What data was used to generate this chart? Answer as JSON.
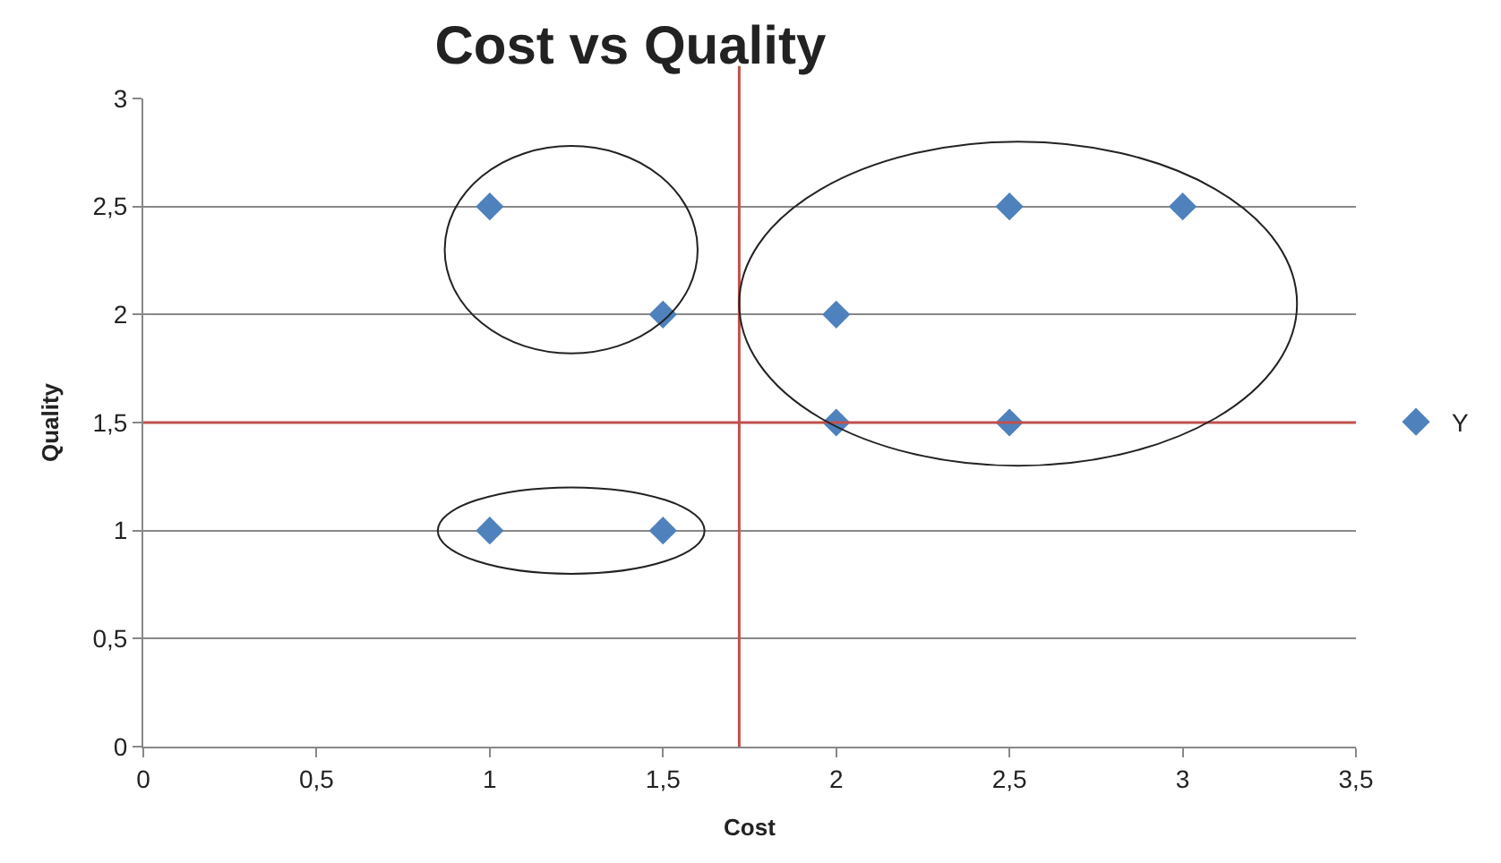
{
  "chart_data": {
    "type": "scatter",
    "title": "Cost vs Quality",
    "xlabel": "Cost",
    "ylabel": "Quality",
    "x": [
      1,
      1.5,
      1,
      1.5,
      2,
      2,
      2.5,
      2.5,
      3
    ],
    "series": [
      {
        "name": "Y",
        "color": "#4f81bd",
        "values": [
          2.5,
          2,
          1,
          1,
          2,
          1.5,
          2.5,
          1.5,
          2.5
        ]
      }
    ],
    "xlim": [
      0,
      3.5
    ],
    "xticks": [
      0,
      {
        "value": 0.5,
        "label": "0,5"
      },
      1,
      {
        "value": 1.5,
        "label": "1,5"
      },
      2,
      {
        "value": 2.5,
        "label": "2,5"
      },
      3,
      {
        "value": 3.5,
        "label": "3,5"
      }
    ],
    "ylim": [
      0,
      3
    ],
    "yticks": [
      0,
      {
        "value": 0.5,
        "label": "0,5"
      },
      1,
      {
        "value": 1.5,
        "label": "1,5"
      },
      2,
      {
        "value": 2.5,
        "label": "2,5"
      },
      3
    ],
    "ref_lines": [
      {
        "axis": "x",
        "value": 1.72,
        "color": "#c0504d"
      },
      {
        "axis": "y",
        "value": 1.5,
        "color": "#c0504d"
      }
    ],
    "grid": "y",
    "legend": "right",
    "marker": "diamond"
  }
}
